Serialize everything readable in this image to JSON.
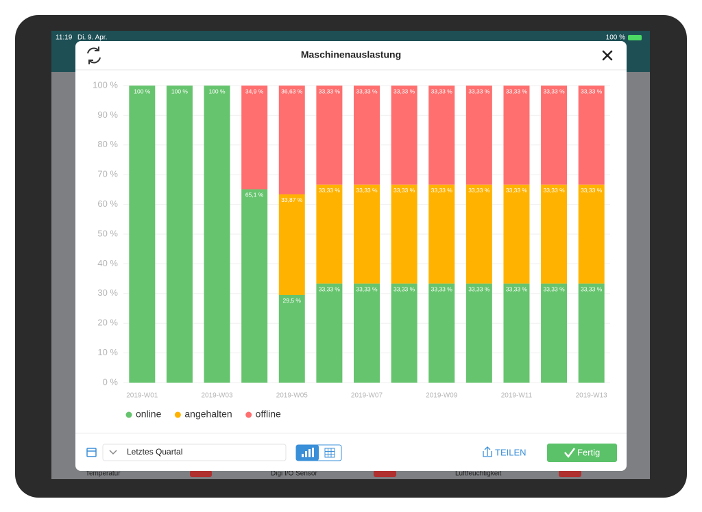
{
  "status_bar": {
    "time": "11:19",
    "date": "Di. 9. Apr.",
    "battery": "100 %"
  },
  "modal": {
    "title": "Maschinenauslastung",
    "period": "Letztes Quartal",
    "share": "TEILEN",
    "done": "Fertig"
  },
  "background": {
    "items": [
      "Temperatur",
      "Digi I/O Sensor",
      "Luftfeuchtigkeit"
    ]
  },
  "chart_data": {
    "type": "stacked_bar",
    "categories": [
      "2019-W01",
      null,
      "2019-W03",
      null,
      "2019-W05",
      null,
      "2019-W07",
      null,
      "2019-W09",
      null,
      "2019-W11",
      null,
      "2019-W13"
    ],
    "series": [
      {
        "name": "online",
        "color": "#66c46e",
        "values": [
          100,
          100,
          100,
          65.1,
          29.5,
          33.33,
          33.33,
          33.33,
          33.33,
          33.33,
          33.33,
          33.33,
          33.33
        ],
        "value_labels": [
          "100 %",
          "100 %",
          "100 %",
          "65,1 %",
          "29,5 %",
          "33,33 %",
          "33,33 %",
          "33,33 %",
          "33,33 %",
          "33,33 %",
          "33,33 %",
          "33,33 %",
          "33,33 %"
        ]
      },
      {
        "name": "angehalten",
        "color": "#ffb300",
        "values": [
          0,
          0,
          0,
          0,
          33.87,
          33.33,
          33.33,
          33.33,
          33.33,
          33.33,
          33.33,
          33.33,
          33.33
        ],
        "value_labels": [
          null,
          null,
          null,
          null,
          "33,87 %",
          "33,33 %",
          "33,33 %",
          "33,33 %",
          "33,33 %",
          "33,33 %",
          "33,33 %",
          "33,33 %",
          "33,33 %"
        ]
      },
      {
        "name": "offline",
        "color": "#ff6f6f",
        "values": [
          0,
          0,
          0,
          34.9,
          36.63,
          33.33,
          33.33,
          33.33,
          33.33,
          33.33,
          33.33,
          33.33,
          33.33
        ],
        "value_labels": [
          null,
          null,
          null,
          "34,9 %",
          "36,63 %",
          "33,33 %",
          "33,33 %",
          "33,33 %",
          "33,33 %",
          "33,33 %",
          "33,33 %",
          "33,33 %",
          "33,33 %"
        ]
      }
    ],
    "ylim": [
      0,
      100
    ],
    "yticks": [
      {
        "value": 0,
        "label": "0 %"
      },
      {
        "value": 10,
        "label": "10 %"
      },
      {
        "value": 20,
        "label": "20 %"
      },
      {
        "value": 30,
        "label": "30 %"
      },
      {
        "value": 40,
        "label": "40 %"
      },
      {
        "value": 50,
        "label": "50 %"
      },
      {
        "value": 60,
        "label": "60 %"
      },
      {
        "value": 70,
        "label": "70 %"
      },
      {
        "value": 80,
        "label": "80 %"
      },
      {
        "value": 90,
        "label": "90 %"
      },
      {
        "value": 100,
        "label": "100 %"
      }
    ],
    "grid": true,
    "legend": "bottom-left"
  }
}
